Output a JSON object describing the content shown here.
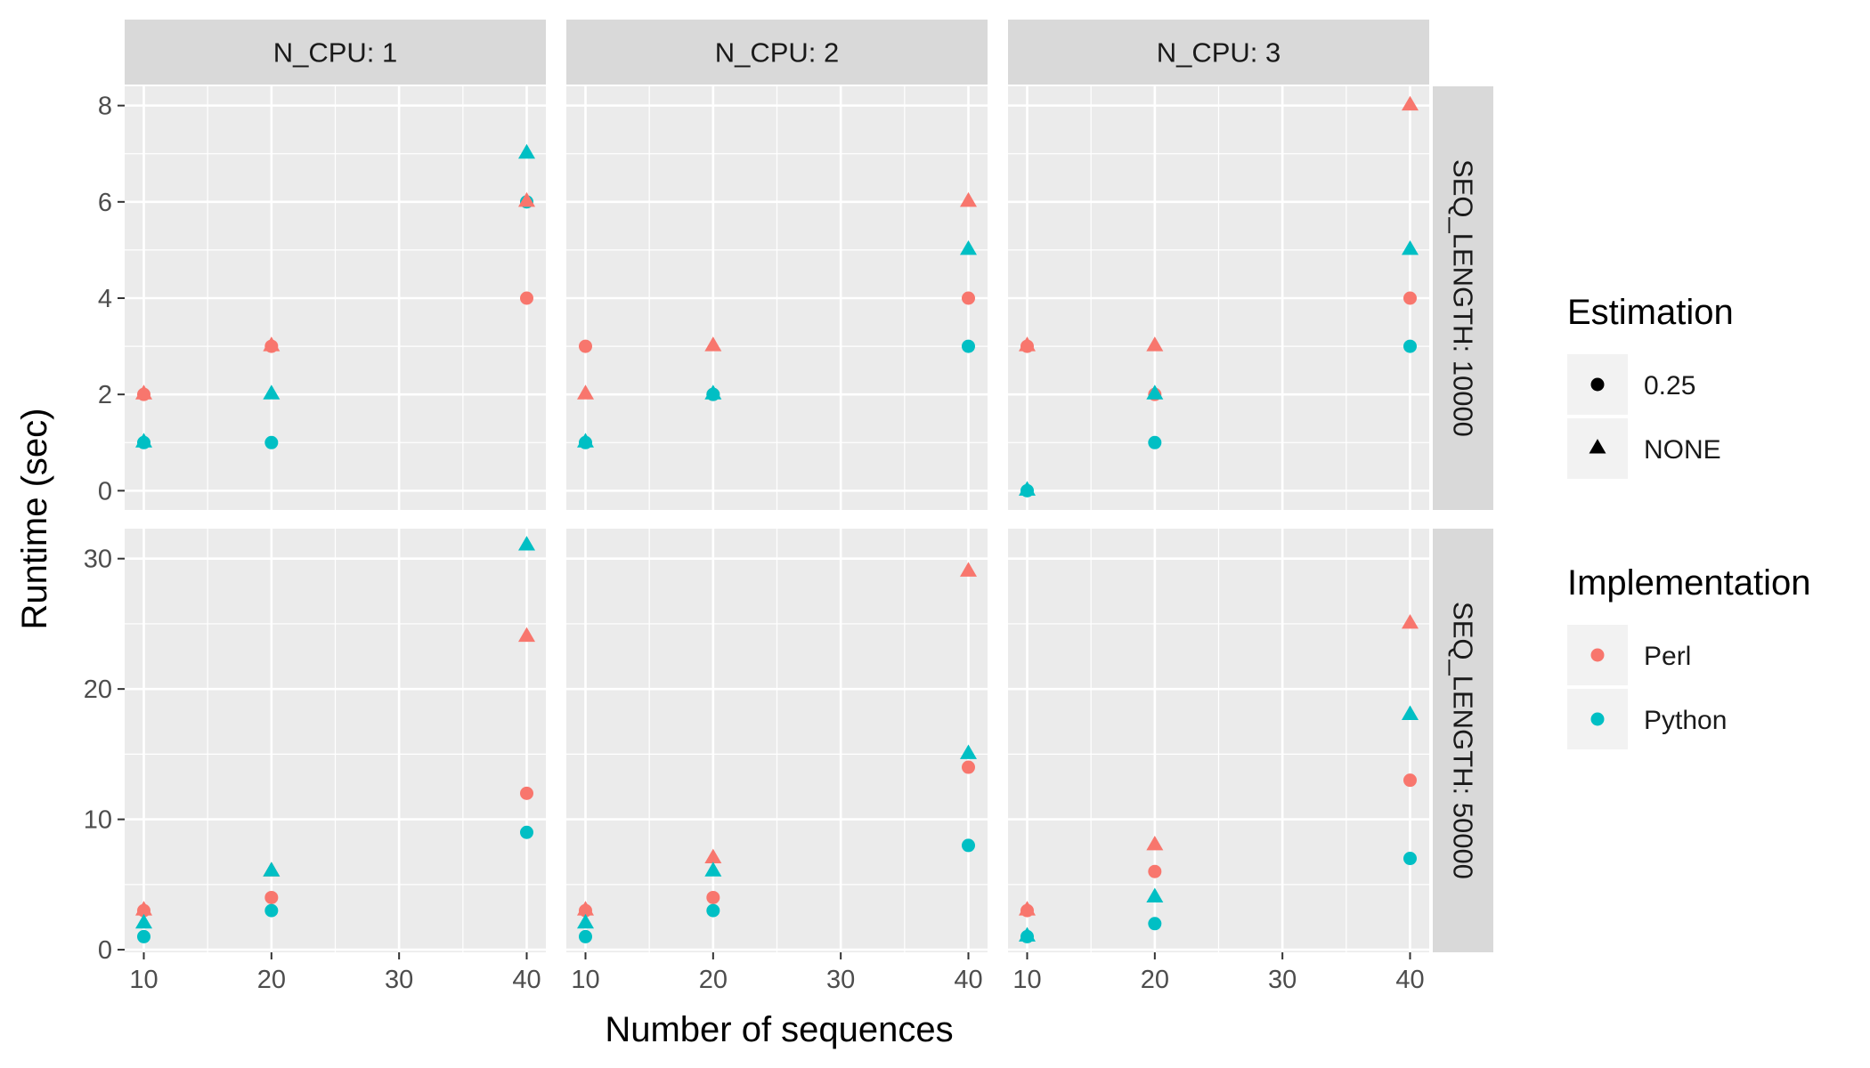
{
  "chart_data": {
    "type": "scatter",
    "xlabel": "Number of sequences",
    "ylabel": "Runtime (sec)",
    "facet_cols": [
      "N_CPU: 1",
      "N_CPU: 2",
      "N_CPU: 3"
    ],
    "facet_rows": [
      "SEQ_LENGTH: 10000",
      "SEQ_LENGTH: 50000"
    ],
    "xlim": [
      8.5,
      41.5
    ],
    "xticks": [
      10,
      20,
      30,
      40
    ],
    "row_scales": [
      {
        "ylim": [
          -0.4,
          8.4
        ],
        "yticks": [
          0,
          2,
          4,
          6,
          8
        ]
      },
      {
        "ylim": [
          -0.2,
          32.3
        ],
        "yticks": [
          0,
          10,
          20,
          30
        ]
      }
    ],
    "legend": {
      "placement": "right",
      "estimation": {
        "title": "Estimation",
        "entries": [
          {
            "label": "0.25",
            "shape": "circle"
          },
          {
            "label": "NONE",
            "shape": "triangle"
          }
        ]
      },
      "implementation": {
        "title": "Implementation",
        "entries": [
          {
            "label": "Perl",
            "color": "#F8766D"
          },
          {
            "label": "Python",
            "color": "#00BFC4"
          }
        ]
      }
    },
    "colors": {
      "Perl": "#F8766D",
      "Python": "#00BFC4",
      "panel_bg": "#EBEBEB",
      "strip_bg": "#D9D9D9",
      "grid": "#FFFFFF"
    },
    "grid": true,
    "series": [
      {
        "implementation": "Perl",
        "estimation": "0.25",
        "panels": [
          {
            "row": 0,
            "col": 0,
            "x": [
              10,
              20,
              40
            ],
            "y": [
              2,
              3,
              4
            ]
          },
          {
            "row": 0,
            "col": 1,
            "x": [
              10,
              20,
              40
            ],
            "y": [
              3,
              2,
              4
            ]
          },
          {
            "row": 0,
            "col": 2,
            "x": [
              10,
              20,
              40
            ],
            "y": [
              3,
              2,
              4
            ]
          },
          {
            "row": 1,
            "col": 0,
            "x": [
              10,
              20,
              40
            ],
            "y": [
              3,
              4,
              12
            ]
          },
          {
            "row": 1,
            "col": 1,
            "x": [
              10,
              20,
              40
            ],
            "y": [
              3,
              4,
              14
            ]
          },
          {
            "row": 1,
            "col": 2,
            "x": [
              10,
              20,
              40
            ],
            "y": [
              3,
              6,
              13
            ]
          }
        ]
      },
      {
        "implementation": "Python",
        "estimation": "0.25",
        "panels": [
          {
            "row": 0,
            "col": 0,
            "x": [
              10,
              20,
              40
            ],
            "y": [
              1,
              1,
              6
            ]
          },
          {
            "row": 0,
            "col": 1,
            "x": [
              10,
              20,
              40
            ],
            "y": [
              1,
              2,
              3
            ]
          },
          {
            "row": 0,
            "col": 2,
            "x": [
              10,
              20,
              40
            ],
            "y": [
              0,
              1,
              3
            ]
          },
          {
            "row": 1,
            "col": 0,
            "x": [
              10,
              20,
              40
            ],
            "y": [
              1,
              3,
              9
            ]
          },
          {
            "row": 1,
            "col": 1,
            "x": [
              10,
              20,
              40
            ],
            "y": [
              1,
              3,
              8
            ]
          },
          {
            "row": 1,
            "col": 2,
            "x": [
              10,
              20,
              40
            ],
            "y": [
              1,
              2,
              7
            ]
          }
        ]
      },
      {
        "implementation": "Perl",
        "estimation": "NONE",
        "panels": [
          {
            "row": 0,
            "col": 0,
            "x": [
              10,
              20,
              40
            ],
            "y": [
              2,
              3,
              6
            ]
          },
          {
            "row": 0,
            "col": 1,
            "x": [
              10,
              20,
              40
            ],
            "y": [
              2,
              3,
              6
            ]
          },
          {
            "row": 0,
            "col": 2,
            "x": [
              10,
              20,
              40
            ],
            "y": [
              3,
              3,
              8
            ]
          },
          {
            "row": 1,
            "col": 0,
            "x": [
              10,
              20,
              40
            ],
            "y": [
              3,
              6,
              24
            ]
          },
          {
            "row": 1,
            "col": 1,
            "x": [
              10,
              20,
              40
            ],
            "y": [
              3,
              7,
              29
            ]
          },
          {
            "row": 1,
            "col": 2,
            "x": [
              10,
              20,
              40
            ],
            "y": [
              3,
              8,
              25
            ]
          }
        ]
      },
      {
        "implementation": "Python",
        "estimation": "NONE",
        "panels": [
          {
            "row": 0,
            "col": 0,
            "x": [
              10,
              20,
              40
            ],
            "y": [
              1,
              2,
              7
            ]
          },
          {
            "row": 0,
            "col": 1,
            "x": [
              10,
              20,
              40
            ],
            "y": [
              1,
              2,
              5
            ]
          },
          {
            "row": 0,
            "col": 2,
            "x": [
              10,
              20,
              40
            ],
            "y": [
              0,
              2,
              5
            ]
          },
          {
            "row": 1,
            "col": 0,
            "x": [
              10,
              20,
              40
            ],
            "y": [
              2,
              6,
              31
            ]
          },
          {
            "row": 1,
            "col": 1,
            "x": [
              10,
              20,
              40
            ],
            "y": [
              2,
              6,
              15
            ]
          },
          {
            "row": 1,
            "col": 2,
            "x": [
              10,
              20,
              40
            ],
            "y": [
              1,
              4,
              18
            ]
          }
        ]
      }
    ]
  }
}
